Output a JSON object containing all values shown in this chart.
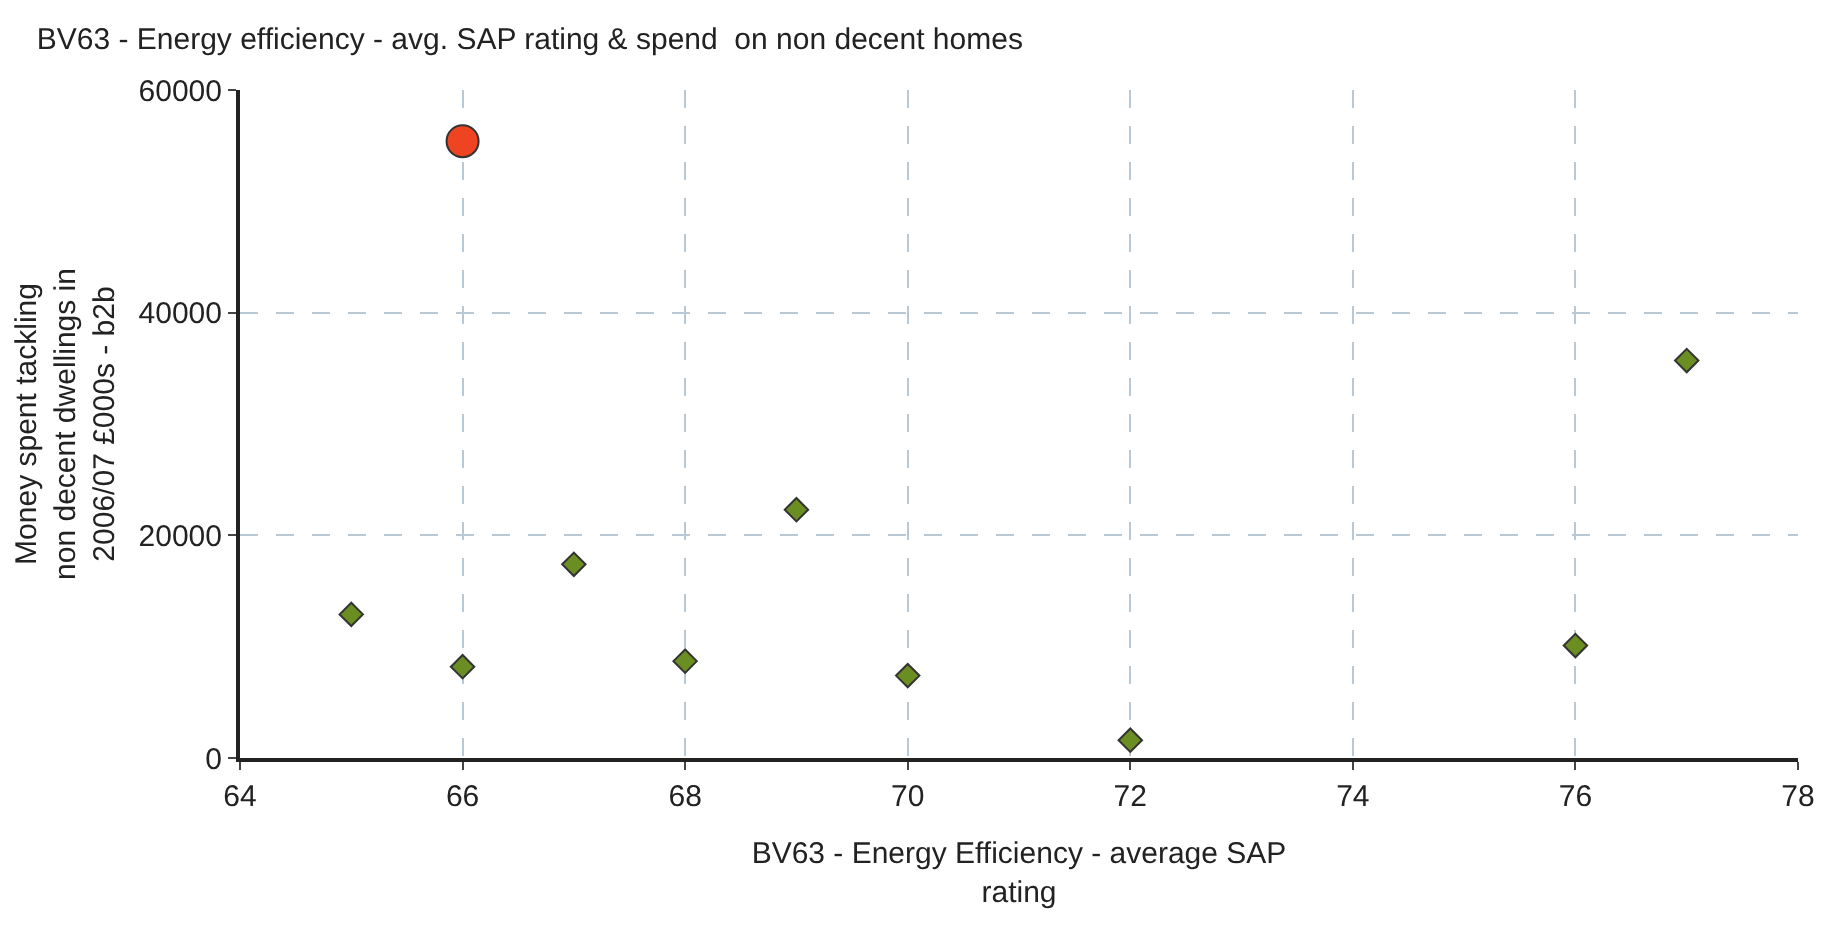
{
  "chart_data": {
    "type": "scatter",
    "title": "BV63 - Energy efficiency - avg. SAP rating & spend  on non decent homes",
    "xlabel": "BV63 - Energy Efficiency - average SAP rating",
    "ylabel": "Money spent tackling non decent dwellings in 2006/07 £000s - b2b",
    "series": [
      {
        "color": "#6b8e23",
        "marker": "diamond",
        "x": [
          65,
          66,
          67,
          68,
          69,
          70,
          72,
          76,
          77
        ],
        "values": [
          12900,
          8200,
          17400,
          8700,
          22300,
          7400,
          1600,
          10100,
          35700
        ]
      },
      {
        "color": "#ee4422",
        "marker": "circle",
        "x": [
          66
        ],
        "values": [
          55400
        ]
      }
    ],
    "xlim": [
      64,
      78
    ],
    "xticks": [
      64,
      66,
      68,
      70,
      72,
      74,
      76,
      78
    ],
    "ylim": [
      0,
      60000
    ],
    "yticks": [
      0,
      20000,
      40000,
      60000
    ],
    "grid": true
  }
}
